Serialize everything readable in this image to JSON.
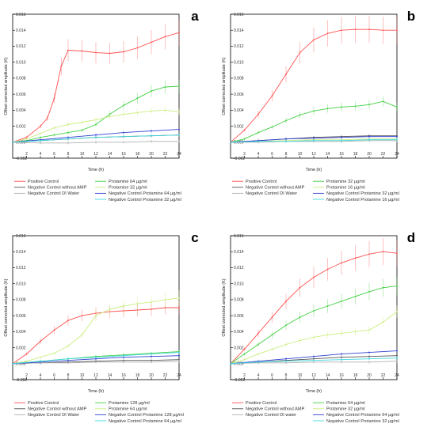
{
  "colors": {
    "positive_control": "#ff5050",
    "negative_no_amp": "#555555",
    "negative_di_water": "#b0b0b0",
    "protamine_high": "#40d040",
    "protamine_low": "#ccee80",
    "neg_protamine_high": "#3040d0",
    "neg_protamine_low": "#40d8e0"
  },
  "chart_data": [
    {
      "panel": "a",
      "type": "line",
      "ylabel": "Offset corrected amplitude (K)",
      "xlabel": "Time (h)",
      "xlim": [
        0,
        24
      ],
      "ylim": [
        -0.002,
        0.016
      ],
      "xticks": [
        "2",
        "4",
        "6",
        "8",
        "10",
        "12",
        "14",
        "16",
        "18",
        "20",
        "22",
        "24"
      ],
      "yticks": [
        "-0.002",
        "0.000",
        "0.002",
        "0.004",
        "0.006",
        "0.008",
        "0.010",
        "0.012",
        "0.014",
        "0.016"
      ],
      "legend": [
        "Positive Control",
        "Protamine 64 µg/ml",
        "Negative Control without AMP",
        "Protamine 32 µg/ml",
        "Negative Control DI Water",
        "Negative Control Protamine 64 µg/ml",
        "",
        "Negative Control Protamine 32 µg/ml"
      ],
      "series": [
        {
          "name": "Positive Control",
          "color_key": "positive_control",
          "x": [
            0,
            2,
            4,
            5,
            6,
            7,
            8,
            10,
            12,
            14,
            16,
            18,
            20,
            22,
            24
          ],
          "y": [
            0,
            0.0006,
            0.002,
            0.003,
            0.0055,
            0.0095,
            0.0115,
            0.0114,
            0.0112,
            0.0111,
            0.0113,
            0.0118,
            0.0125,
            0.0132,
            0.0137
          ]
        },
        {
          "name": "Protamine 64 µg/ml",
          "color_key": "protamine_high",
          "x": [
            0,
            2,
            4,
            6,
            8,
            10,
            12,
            14,
            16,
            18,
            20,
            22,
            24
          ],
          "y": [
            0,
            0.0002,
            0.0006,
            0.0009,
            0.0012,
            0.0015,
            0.0022,
            0.0035,
            0.0046,
            0.0055,
            0.0064,
            0.0069,
            0.007
          ]
        },
        {
          "name": "Negative Control without AMP",
          "color_key": "negative_no_amp",
          "x": [
            0,
            4,
            8,
            12,
            16,
            20,
            24
          ],
          "y": [
            0,
            0.0002,
            0.0004,
            0.0006,
            0.0007,
            0.0008,
            0.0009
          ]
        },
        {
          "name": "Protamine 32 µg/ml",
          "color_key": "protamine_low",
          "x": [
            0,
            2,
            4,
            6,
            8,
            10,
            12,
            14,
            16,
            18,
            20,
            22,
            24
          ],
          "y": [
            0,
            0.0004,
            0.0011,
            0.0018,
            0.0022,
            0.0025,
            0.0028,
            0.0032,
            0.0035,
            0.0037,
            0.0039,
            0.004,
            0.0038
          ]
        },
        {
          "name": "Negative Control DI Water",
          "color_key": "negative_di_water",
          "x": [
            0,
            4,
            8,
            12,
            16,
            20,
            24
          ],
          "y": [
            0,
            -0.0001,
            -0.0001,
            0,
            0,
            0.0001,
            0.0001
          ]
        },
        {
          "name": "Negative Control Protamine 64 µg/ml",
          "color_key": "neg_protamine_high",
          "x": [
            0,
            4,
            8,
            12,
            16,
            20,
            24
          ],
          "y": [
            0,
            0.0003,
            0.0006,
            0.0009,
            0.0012,
            0.0014,
            0.0016
          ]
        },
        {
          "name": "Negative Control Protamine 32 µg/ml",
          "color_key": "neg_protamine_low",
          "x": [
            0,
            4,
            8,
            12,
            16,
            20,
            24
          ],
          "y": [
            0,
            0.0002,
            0.0004,
            0.0006,
            0.0007,
            0.0008,
            0.0009
          ]
        }
      ]
    },
    {
      "panel": "b",
      "type": "line",
      "ylabel": "Offset corrected amplitude (K)",
      "xlabel": "Time (h)",
      "xlim": [
        0,
        24
      ],
      "ylim": [
        -0.002,
        0.016
      ],
      "xticks": [
        "2",
        "4",
        "6",
        "8",
        "10",
        "12",
        "14",
        "16",
        "18",
        "20",
        "22",
        "24"
      ],
      "yticks": [
        "-0.002",
        "0.000",
        "0.002",
        "0.004",
        "0.006",
        "0.008",
        "0.010",
        "0.012",
        "0.014",
        "0.016"
      ],
      "legend": [
        "Positive Control",
        "Protamine 32 µg/ml",
        "Negative Control without AMP",
        "Protamine 16 µg/ml",
        "Negative Control DI Water",
        "Negative Control Protamine 32 µg/ml",
        "",
        "Negative Control Protamine 16 µg/ml"
      ],
      "series": [
        {
          "name": "Positive Control",
          "color_key": "positive_control",
          "x": [
            0,
            2,
            4,
            6,
            8,
            10,
            12,
            14,
            16,
            18,
            20,
            22,
            24
          ],
          "y": [
            0,
            0.0015,
            0.0035,
            0.0058,
            0.0085,
            0.0112,
            0.0128,
            0.0136,
            0.014,
            0.0141,
            0.0141,
            0.014,
            0.014
          ]
        },
        {
          "name": "Protamine 32 µg/ml",
          "color_key": "protamine_high",
          "x": [
            0,
            2,
            4,
            6,
            8,
            10,
            12,
            14,
            16,
            18,
            20,
            22,
            24
          ],
          "y": [
            0,
            0.0004,
            0.0012,
            0.0019,
            0.0027,
            0.0034,
            0.0039,
            0.0042,
            0.0044,
            0.0045,
            0.0047,
            0.0051,
            0.0044
          ]
        },
        {
          "name": "Negative Control without AMP",
          "color_key": "negative_no_amp",
          "x": [
            0,
            4,
            8,
            12,
            16,
            20,
            24
          ],
          "y": [
            0,
            0.0002,
            0.0004,
            0.0006,
            0.0007,
            0.0008,
            0.0008
          ]
        },
        {
          "name": "Protamine 16 µg/ml",
          "color_key": "protamine_low",
          "x": [
            0,
            4,
            8,
            12,
            16,
            20,
            24
          ],
          "y": [
            0,
            0.0001,
            0.0002,
            0.0003,
            0.0003,
            0.0004,
            0.0004
          ]
        },
        {
          "name": "Negative Control DI Water",
          "color_key": "negative_di_water",
          "x": [
            0,
            4,
            8,
            12,
            16,
            20,
            24
          ],
          "y": [
            0,
            0,
            0.0001,
            0.0001,
            0.0001,
            0.0002,
            0.0002
          ]
        },
        {
          "name": "Negative Control Protamine 32 µg/ml",
          "color_key": "neg_protamine_high",
          "x": [
            0,
            4,
            8,
            12,
            16,
            20,
            24
          ],
          "y": [
            0,
            0.0002,
            0.0004,
            0.0005,
            0.0006,
            0.0007,
            0.0007
          ]
        },
        {
          "name": "Negative Control Protamine 16 µg/ml",
          "color_key": "neg_protamine_low",
          "x": [
            0,
            4,
            8,
            12,
            16,
            20,
            24
          ],
          "y": [
            0,
            0.0001,
            0.0001,
            0.0002,
            0.0002,
            0.0003,
            0.0003
          ]
        }
      ]
    },
    {
      "panel": "c",
      "type": "line",
      "ylabel": "Offset corrected amplitude (K)",
      "xlabel": "Time (h)",
      "xlim": [
        0,
        24
      ],
      "ylim": [
        -0.002,
        0.016
      ],
      "xticks": [
        "2",
        "4",
        "6",
        "8",
        "10",
        "12",
        "14",
        "16",
        "18",
        "20",
        "22",
        "24"
      ],
      "yticks": [
        "-0.002",
        "0.000",
        "0.002",
        "0.004",
        "0.006",
        "0.008",
        "0.010",
        "0.012",
        "0.014",
        "0.016"
      ],
      "legend": [
        "Positive Control",
        "Protamine 128 µg/ml",
        "Negative Control without AMP",
        "Protamine 64 µg/ml",
        "Negative Control DI Water",
        "Negative Control Protamine 128 µg/ml",
        "",
        "Negative Control Protamine 64 µg/ml"
      ],
      "series": [
        {
          "name": "Positive Control",
          "color_key": "positive_control",
          "x": [
            0,
            2,
            4,
            6,
            8,
            10,
            12,
            14,
            16,
            18,
            20,
            22,
            24
          ],
          "y": [
            0,
            0.0012,
            0.0028,
            0.0042,
            0.0054,
            0.006,
            0.0063,
            0.0065,
            0.0066,
            0.0067,
            0.0068,
            0.007,
            0.007
          ]
        },
        {
          "name": "Protamine 128 µg/ml",
          "color_key": "protamine_high",
          "x": [
            0,
            4,
            8,
            12,
            16,
            20,
            24
          ],
          "y": [
            0,
            0.0003,
            0.0006,
            0.0009,
            0.0011,
            0.0013,
            0.0015
          ]
        },
        {
          "name": "Negative Control without AMP",
          "color_key": "negative_no_amp",
          "x": [
            0,
            4,
            8,
            12,
            16,
            20,
            24
          ],
          "y": [
            0,
            0.0001,
            0.0002,
            0.0003,
            0.0004,
            0.0004,
            0.0005
          ]
        },
        {
          "name": "Protamine 64 µg/ml",
          "color_key": "protamine_low",
          "x": [
            0,
            2,
            4,
            6,
            8,
            10,
            12,
            14,
            16,
            18,
            20,
            22,
            24
          ],
          "y": [
            0,
            0.0003,
            0.0008,
            0.0013,
            0.0022,
            0.0036,
            0.006,
            0.0068,
            0.0072,
            0.0075,
            0.0077,
            0.008,
            0.0082
          ]
        },
        {
          "name": "Negative Control DI Water",
          "color_key": "negative_di_water",
          "x": [
            0,
            4,
            8,
            12,
            16,
            20,
            24
          ],
          "y": [
            0,
            0.0001,
            0.0001,
            0.0002,
            0.0002,
            0.0002,
            0.0003
          ]
        },
        {
          "name": "Negative Control Protamine 128 µg/ml",
          "color_key": "neg_protamine_high",
          "x": [
            0,
            4,
            8,
            12,
            16,
            20,
            24
          ],
          "y": [
            0,
            0.0002,
            0.0004,
            0.0006,
            0.0008,
            0.0009,
            0.001
          ]
        },
        {
          "name": "Negative Control Protamine 64 µg/ml",
          "color_key": "neg_protamine_low",
          "x": [
            0,
            4,
            8,
            12,
            16,
            20,
            24
          ],
          "y": [
            0,
            0.0003,
            0.0006,
            0.0008,
            0.001,
            0.0012,
            0.0014
          ]
        }
      ]
    },
    {
      "panel": "d",
      "type": "line",
      "ylabel": "Offset corrected amplitude (K)",
      "xlabel": "Time (h)",
      "xlim": [
        0,
        24
      ],
      "ylim": [
        -0.002,
        0.016
      ],
      "xticks": [
        "2",
        "4",
        "6",
        "8",
        "10",
        "12",
        "14",
        "16",
        "18",
        "20",
        "22",
        "24"
      ],
      "yticks": [
        "-0.002",
        "0.000",
        "0.002",
        "0.004",
        "0.006",
        "0.008",
        "0.010",
        "0.012",
        "0.014",
        "0.016"
      ],
      "legend": [
        "Positive Control",
        "Protamine 64 µg/ml",
        "Negative Control without AMP",
        "Protamine 32 µg/ml",
        "Negative Control DI water",
        "Negative Control Protamine 64 µg/ml",
        "",
        "Negative Control Protamine 32 µg/ml"
      ],
      "series": [
        {
          "name": "Positive Control",
          "color_key": "positive_control",
          "x": [
            0,
            2,
            4,
            6,
            8,
            10,
            12,
            14,
            16,
            18,
            20,
            22,
            24
          ],
          "y": [
            0,
            0.0018,
            0.0038,
            0.0058,
            0.0078,
            0.0095,
            0.0108,
            0.0118,
            0.0126,
            0.0132,
            0.0137,
            0.014,
            0.0138
          ]
        },
        {
          "name": "Protamine 64 µg/ml",
          "color_key": "protamine_high",
          "x": [
            0,
            2,
            4,
            6,
            8,
            10,
            12,
            14,
            16,
            18,
            20,
            22,
            24
          ],
          "y": [
            0,
            0.0012,
            0.0024,
            0.0036,
            0.0048,
            0.0058,
            0.0066,
            0.0072,
            0.0078,
            0.0084,
            0.009,
            0.0095,
            0.0097
          ]
        },
        {
          "name": "Negative Control without AMP",
          "color_key": "negative_no_amp",
          "x": [
            0,
            4,
            8,
            12,
            16,
            20,
            24
          ],
          "y": [
            0,
            0.0002,
            0.0004,
            0.0006,
            0.0008,
            0.0009,
            0.001
          ]
        },
        {
          "name": "Protamine 32 µg/ml",
          "color_key": "protamine_low",
          "x": [
            0,
            2,
            4,
            6,
            8,
            10,
            12,
            14,
            16,
            18,
            20,
            22,
            24
          ],
          "y": [
            0,
            0.0005,
            0.0012,
            0.0018,
            0.0024,
            0.0029,
            0.0033,
            0.0036,
            0.0038,
            0.004,
            0.0042,
            0.0052,
            0.0065
          ]
        },
        {
          "name": "Negative Control DI water",
          "color_key": "negative_di_water",
          "x": [
            0,
            4,
            8,
            12,
            16,
            20,
            24
          ],
          "y": [
            0,
            0.0001,
            0.0001,
            0.0002,
            0.0002,
            0.0002,
            0.0003
          ]
        },
        {
          "name": "Negative Control Protamine 64 µg/ml",
          "color_key": "neg_protamine_high",
          "x": [
            0,
            4,
            8,
            12,
            16,
            20,
            24
          ],
          "y": [
            0,
            0.0003,
            0.0006,
            0.0009,
            0.0012,
            0.0014,
            0.0016
          ]
        },
        {
          "name": "Negative Control Protamine 32 µg/ml",
          "color_key": "neg_protamine_low",
          "x": [
            0,
            4,
            8,
            12,
            16,
            20,
            24
          ],
          "y": [
            0,
            0.0002,
            0.0003,
            0.0004,
            0.0005,
            0.0006,
            0.0007
          ]
        }
      ]
    }
  ]
}
